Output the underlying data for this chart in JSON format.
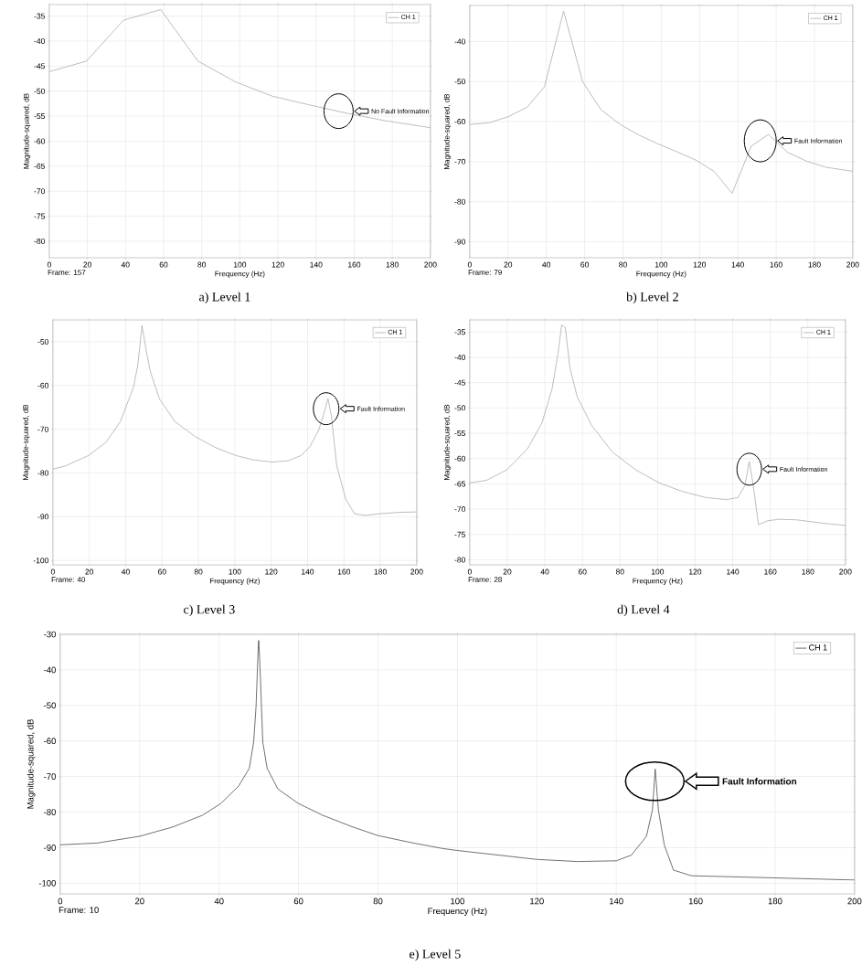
{
  "chart_data": [
    {
      "type": "line",
      "xlabel": "Frequency (Hz)",
      "ylabel": "Magnitude-squared, dB",
      "xlim": [
        0,
        200
      ],
      "ylim": [
        -83.3,
        -32.7
      ],
      "xticks": [
        0,
        20,
        40,
        60,
        80,
        100,
        120,
        140,
        160,
        180,
        200
      ],
      "yticks": [
        -80,
        -75,
        -70,
        -65,
        -60,
        -55,
        -50,
        -45,
        -40,
        -35
      ],
      "grid": true,
      "legend": "top right",
      "series": [
        {
          "name": "CH 1",
          "color": "#a0a0a0",
          "x": [
            0,
            19.5,
            39,
            58.5,
            78,
            98,
            117,
            137,
            156,
            176,
            200
          ],
          "values": [
            -46.1,
            -44.0,
            -35.8,
            -33.7,
            -44.0,
            -48.2,
            -51.0,
            -52.8,
            -54.4,
            -55.9,
            -57.3
          ]
        }
      ],
      "annotations": [
        "a) Level 1",
        "Frame: 157",
        "No Fault Information"
      ]
    },
    {
      "type": "line",
      "xlabel": "Frequency (Hz)",
      "ylabel": "Magnitude-squared, dB",
      "xlim": [
        0,
        200
      ],
      "ylim": [
        -94,
        -31
      ],
      "xticks": [
        0,
        20,
        40,
        60,
        80,
        100,
        120,
        140,
        160,
        180,
        200
      ],
      "yticks": [
        -90,
        -80,
        -70,
        -60,
        -50,
        -40
      ],
      "grid": true,
      "legend": "top right",
      "series": [
        {
          "name": "CH 1",
          "color": "#a0a0a0",
          "x": [
            0,
            10,
            20,
            30,
            39,
            49,
            59,
            68.5,
            78.5,
            88.5,
            98,
            108,
            118,
            127.5,
            137,
            147,
            156,
            166,
            176,
            186,
            200
          ],
          "values": [
            -60.7,
            -60.3,
            -58.8,
            -56.4,
            -51.3,
            -32.4,
            -50.1,
            -57.0,
            -60.7,
            -63.4,
            -65.5,
            -67.5,
            -69.6,
            -72.4,
            -77.9,
            -66.1,
            -63.2,
            -67.7,
            -69.9,
            -71.4,
            -72.4
          ]
        }
      ],
      "annotations": [
        "b) Level 2",
        "Frame: 79",
        "Fault Information"
      ]
    },
    {
      "type": "line",
      "xlabel": "Frequency (Hz)",
      "ylabel": "Magnitude-squared, dB",
      "xlim": [
        0,
        200
      ],
      "ylim": [
        -101,
        -45
      ],
      "xticks": [
        0,
        20,
        40,
        60,
        80,
        100,
        120,
        140,
        160,
        180,
        200
      ],
      "yticks": [
        -100,
        -90,
        -80,
        -70,
        -60,
        -50
      ],
      "grid": true,
      "legend": "top right",
      "series": [
        {
          "name": "CH 1",
          "color": "#a0a0a0",
          "x": [
            0,
            6.8,
            19.6,
            29.1,
            37,
            44.2,
            46.6,
            49,
            51.4,
            53.7,
            58.5,
            67.2,
            78.3,
            89.5,
            100.6,
            110.2,
            120.5,
            129.3,
            136.4,
            141.2,
            146,
            149.1,
            151.2,
            153.1,
            156,
            161,
            165.8,
            171.4,
            180.1,
            189.7,
            200
          ],
          "values": [
            -79.1,
            -78.4,
            -76,
            -73,
            -68.3,
            -60.5,
            -55.5,
            -46.3,
            -52.3,
            -57,
            -63,
            -68.3,
            -71.7,
            -74.2,
            -76,
            -77,
            -77.5,
            -77.2,
            -76,
            -74,
            -70.3,
            -66.3,
            -63,
            -67,
            -78.3,
            -86,
            -89.3,
            -89.7,
            -89.3,
            -89,
            -88.9
          ]
        }
      ],
      "annotations": [
        "c) Level 3",
        "Frame: 40",
        "Fault Information"
      ]
    },
    {
      "type": "line",
      "xlabel": "Frequency (Hz)",
      "ylabel": "Magnitude-squared, dB",
      "xlim": [
        0,
        200
      ],
      "ylim": [
        -81,
        -32.6
      ],
      "xticks": [
        0,
        20,
        40,
        60,
        80,
        100,
        120,
        140,
        160,
        180,
        200
      ],
      "yticks": [
        -80,
        -75,
        -70,
        -65,
        -60,
        -55,
        -50,
        -45,
        -40,
        -35
      ],
      "grid": true,
      "legend": "top right",
      "series": [
        {
          "name": "CH 1",
          "color": "#a0a0a0",
          "x": [
            0,
            8.9,
            19.8,
            30.7,
            38.5,
            43.9,
            47,
            48.9,
            50.9,
            53.3,
            57.2,
            65,
            75.9,
            88.3,
            100.8,
            113.2,
            125.7,
            136.6,
            142.8,
            146.4,
            148.8,
            150.6,
            153.7,
            158.4,
            164.6,
            174,
            186.4,
            200
          ],
          "values": [
            -64.8,
            -64.3,
            -62.2,
            -58.1,
            -52.9,
            -46.1,
            -39.2,
            -33.6,
            -34.1,
            -42,
            -47.8,
            -53.5,
            -58.7,
            -62.2,
            -64.8,
            -66.5,
            -67.7,
            -68.1,
            -67.7,
            -65.4,
            -60.6,
            -64.5,
            -73.1,
            -72.3,
            -72,
            -72.1,
            -72.7,
            -73.2
          ]
        }
      ],
      "annotations": [
        "d) Level 4",
        "Frame: 28",
        "Fault Information"
      ]
    },
    {
      "type": "line",
      "xlabel": "Frequency (Hz)",
      "ylabel": "Magnitude-squared, dB",
      "xlim": [
        0,
        200
      ],
      "ylim": [
        -103,
        -30
      ],
      "xticks": [
        0,
        20,
        40,
        60,
        80,
        100,
        120,
        140,
        160,
        180,
        200
      ],
      "yticks": [
        -100,
        -90,
        -80,
        -70,
        -60,
        -50,
        -40,
        -30
      ],
      "grid": true,
      "legend": "top right",
      "series": [
        {
          "name": "CH 1",
          "color": "#4d4d4d",
          "x": [
            0,
            9.3,
            20,
            28.3,
            35.8,
            40.4,
            44.9,
            47.6,
            48.7,
            49.3,
            49.9,
            50,
            50.4,
            51,
            52.1,
            54.8,
            60,
            66.1,
            73.7,
            80,
            88.9,
            96.1,
            100,
            120,
            130.2,
            140,
            143.8,
            147.6,
            149.1,
            149.8,
            150.6,
            152.1,
            154.4,
            158.9,
            180,
            200
          ],
          "values": [
            -89.2,
            -88.7,
            -86.8,
            -84.2,
            -80.9,
            -77.6,
            -72.7,
            -67.7,
            -60.3,
            -50.4,
            -32.3,
            -31.7,
            -42.2,
            -60.3,
            -67.7,
            -73.5,
            -77.6,
            -80.9,
            -84.2,
            -86.6,
            -88.7,
            -90.2,
            -90.8,
            -93.3,
            -93.9,
            -93.7,
            -92.1,
            -86.8,
            -79.4,
            -67.9,
            -79.4,
            -89.3,
            -96.3,
            -97.9,
            -98.5,
            -99.1
          ]
        }
      ],
      "annotations": [
        "e) Level 5",
        "Frame: 10",
        "Fault Information"
      ]
    }
  ]
}
